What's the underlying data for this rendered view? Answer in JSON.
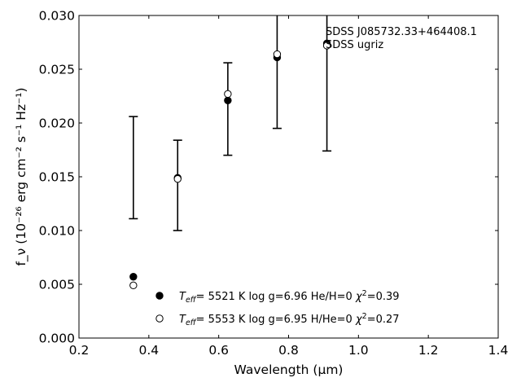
{
  "chart_data": {
    "type": "scatter",
    "xlabel": "Wavelength (μm)",
    "ylabel": "f_ν (10⁻²⁶ erg cm⁻² s⁻¹ Hz⁻¹)",
    "xlim": [
      0.2,
      1.4
    ],
    "ylim": [
      0.0,
      0.03
    ],
    "x_ticks": [
      "0.2",
      "0.4",
      "0.6",
      "0.8",
      "1.0",
      "1.2",
      "1.4"
    ],
    "y_ticks": [
      "0.000",
      "0.005",
      "0.010",
      "0.015",
      "0.020",
      "0.025",
      "0.030"
    ],
    "grid": false,
    "annotations": [
      "SDSS J085732.33+464408.1",
      "SDSS ugriz"
    ],
    "observed": {
      "x": [
        0.3557,
        0.4825,
        0.6261,
        0.7672,
        0.9097
      ],
      "y": [
        0.01585,
        0.0142,
        0.0213,
        0.0253,
        0.0259
      ],
      "err": [
        0.00475,
        0.0042,
        0.0043,
        0.0058,
        0.0085
      ]
    },
    "series": [
      {
        "marker": "filled-circle",
        "legend_parts": [
          "T",
          "eff",
          "= 5521 K log g=6.96 He/H=0 ",
          "χ",
          "2",
          "=0.39"
        ],
        "x": [
          0.3557,
          0.4825,
          0.6261,
          0.7672,
          0.9097
        ],
        "y": [
          0.0057,
          0.0149,
          0.0221,
          0.0261,
          0.0274
        ]
      },
      {
        "marker": "open-circle",
        "legend_parts": [
          "T",
          "eff",
          "= 5553 K log g=6.95 H/He=0 ",
          "χ",
          "2",
          "=0.27"
        ],
        "x": [
          0.3557,
          0.4825,
          0.6261,
          0.7672,
          0.9097
        ],
        "y": [
          0.0049,
          0.0148,
          0.0227,
          0.0264,
          0.0272
        ]
      }
    ],
    "colors": {
      "axes": "#000000",
      "background": "#ffffff"
    }
  }
}
